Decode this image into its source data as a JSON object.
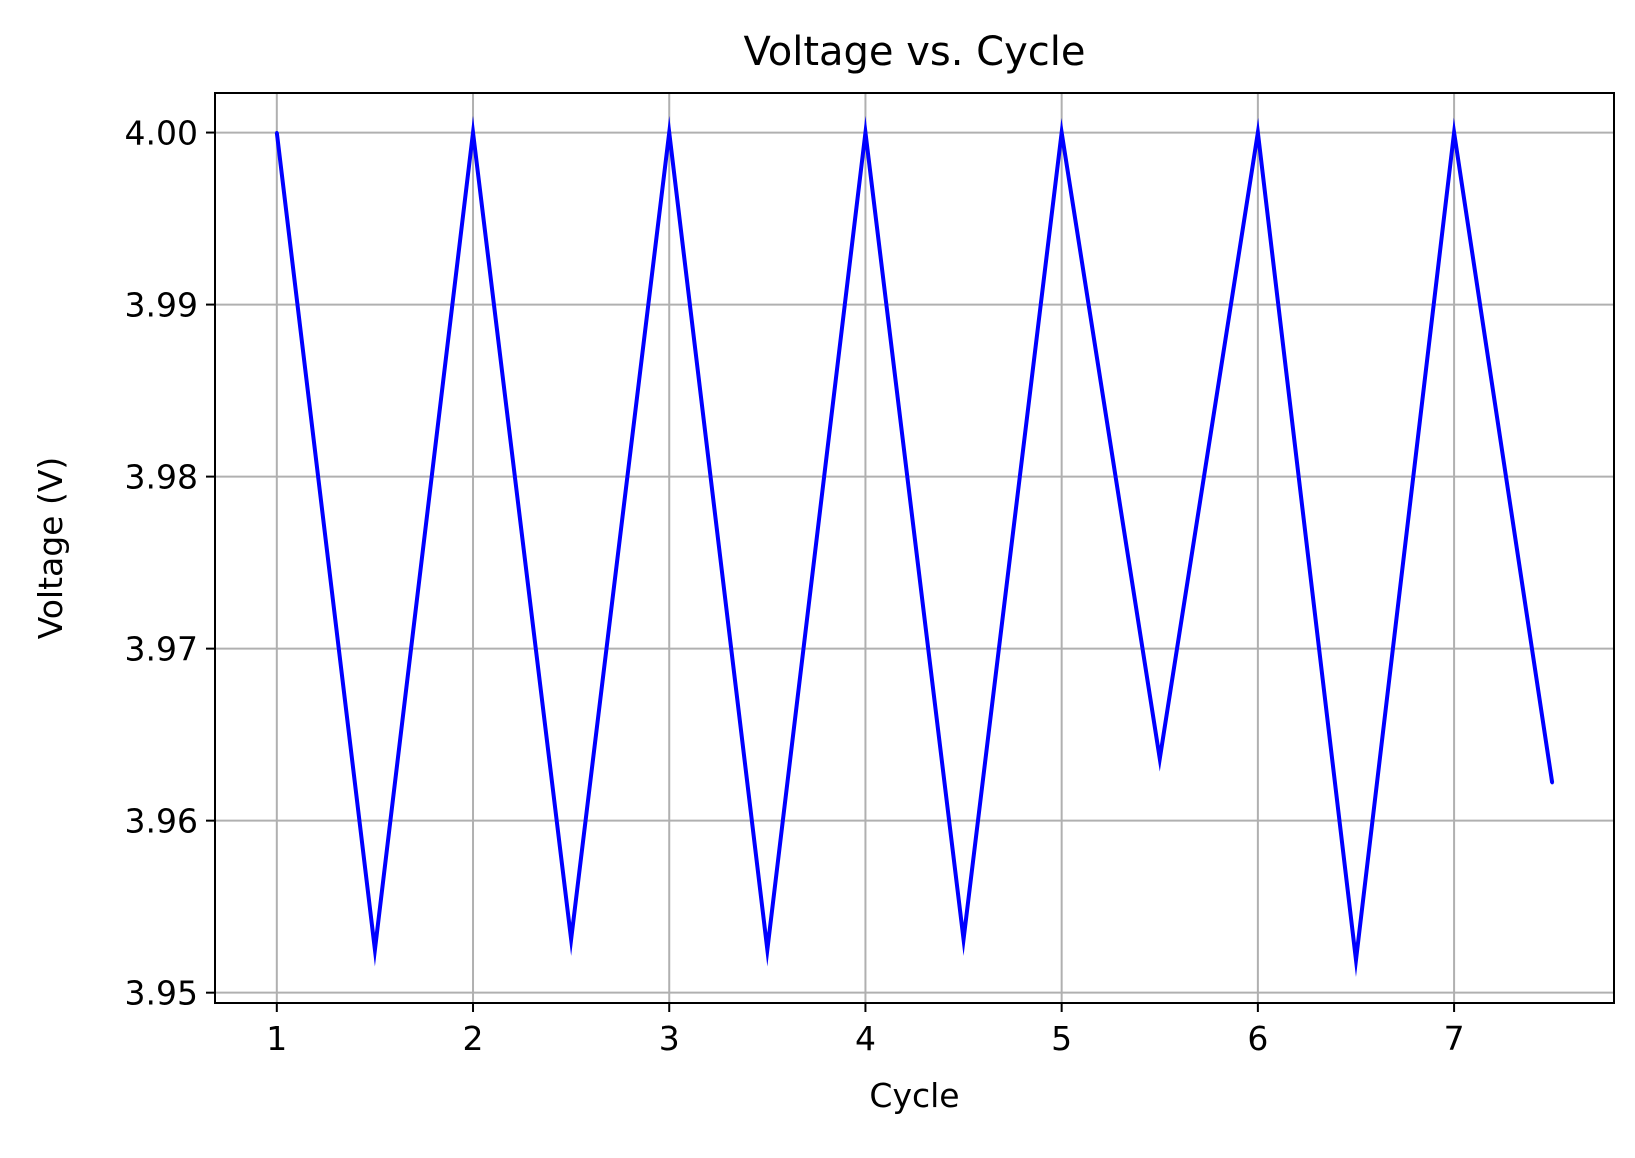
{
  "chart_data": {
    "type": "line",
    "title": "Voltage vs. Cycle",
    "xlabel": "Cycle",
    "ylabel": "Voltage (V)",
    "xlim": [
      0.685,
      7.815
    ],
    "ylim": [
      3.9494,
      4.0023
    ],
    "x_ticks": [
      1,
      2,
      3,
      4,
      5,
      6,
      7
    ],
    "x_tick_labels": [
      "1",
      "2",
      "3",
      "4",
      "5",
      "6",
      "7"
    ],
    "y_ticks": [
      3.95,
      3.96,
      3.97,
      3.98,
      3.99,
      4.0
    ],
    "y_tick_labels": [
      "3.95",
      "3.96",
      "3.97",
      "3.98",
      "3.99",
      "4.00"
    ],
    "grid": true,
    "legend": "none",
    "series": [
      {
        "color": "#0000ff",
        "x": [
          1,
          1.5,
          2,
          2.5,
          3,
          3.5,
          4,
          4.5,
          5,
          5.5,
          6,
          6.5,
          7,
          7.5
        ],
        "values": [
          4.0,
          3.9525,
          4.0,
          3.9531,
          4.0,
          3.9525,
          4.0,
          3.9531,
          4.0,
          3.9636,
          4.0,
          3.9519,
          4.0,
          3.9622
        ]
      }
    ]
  }
}
